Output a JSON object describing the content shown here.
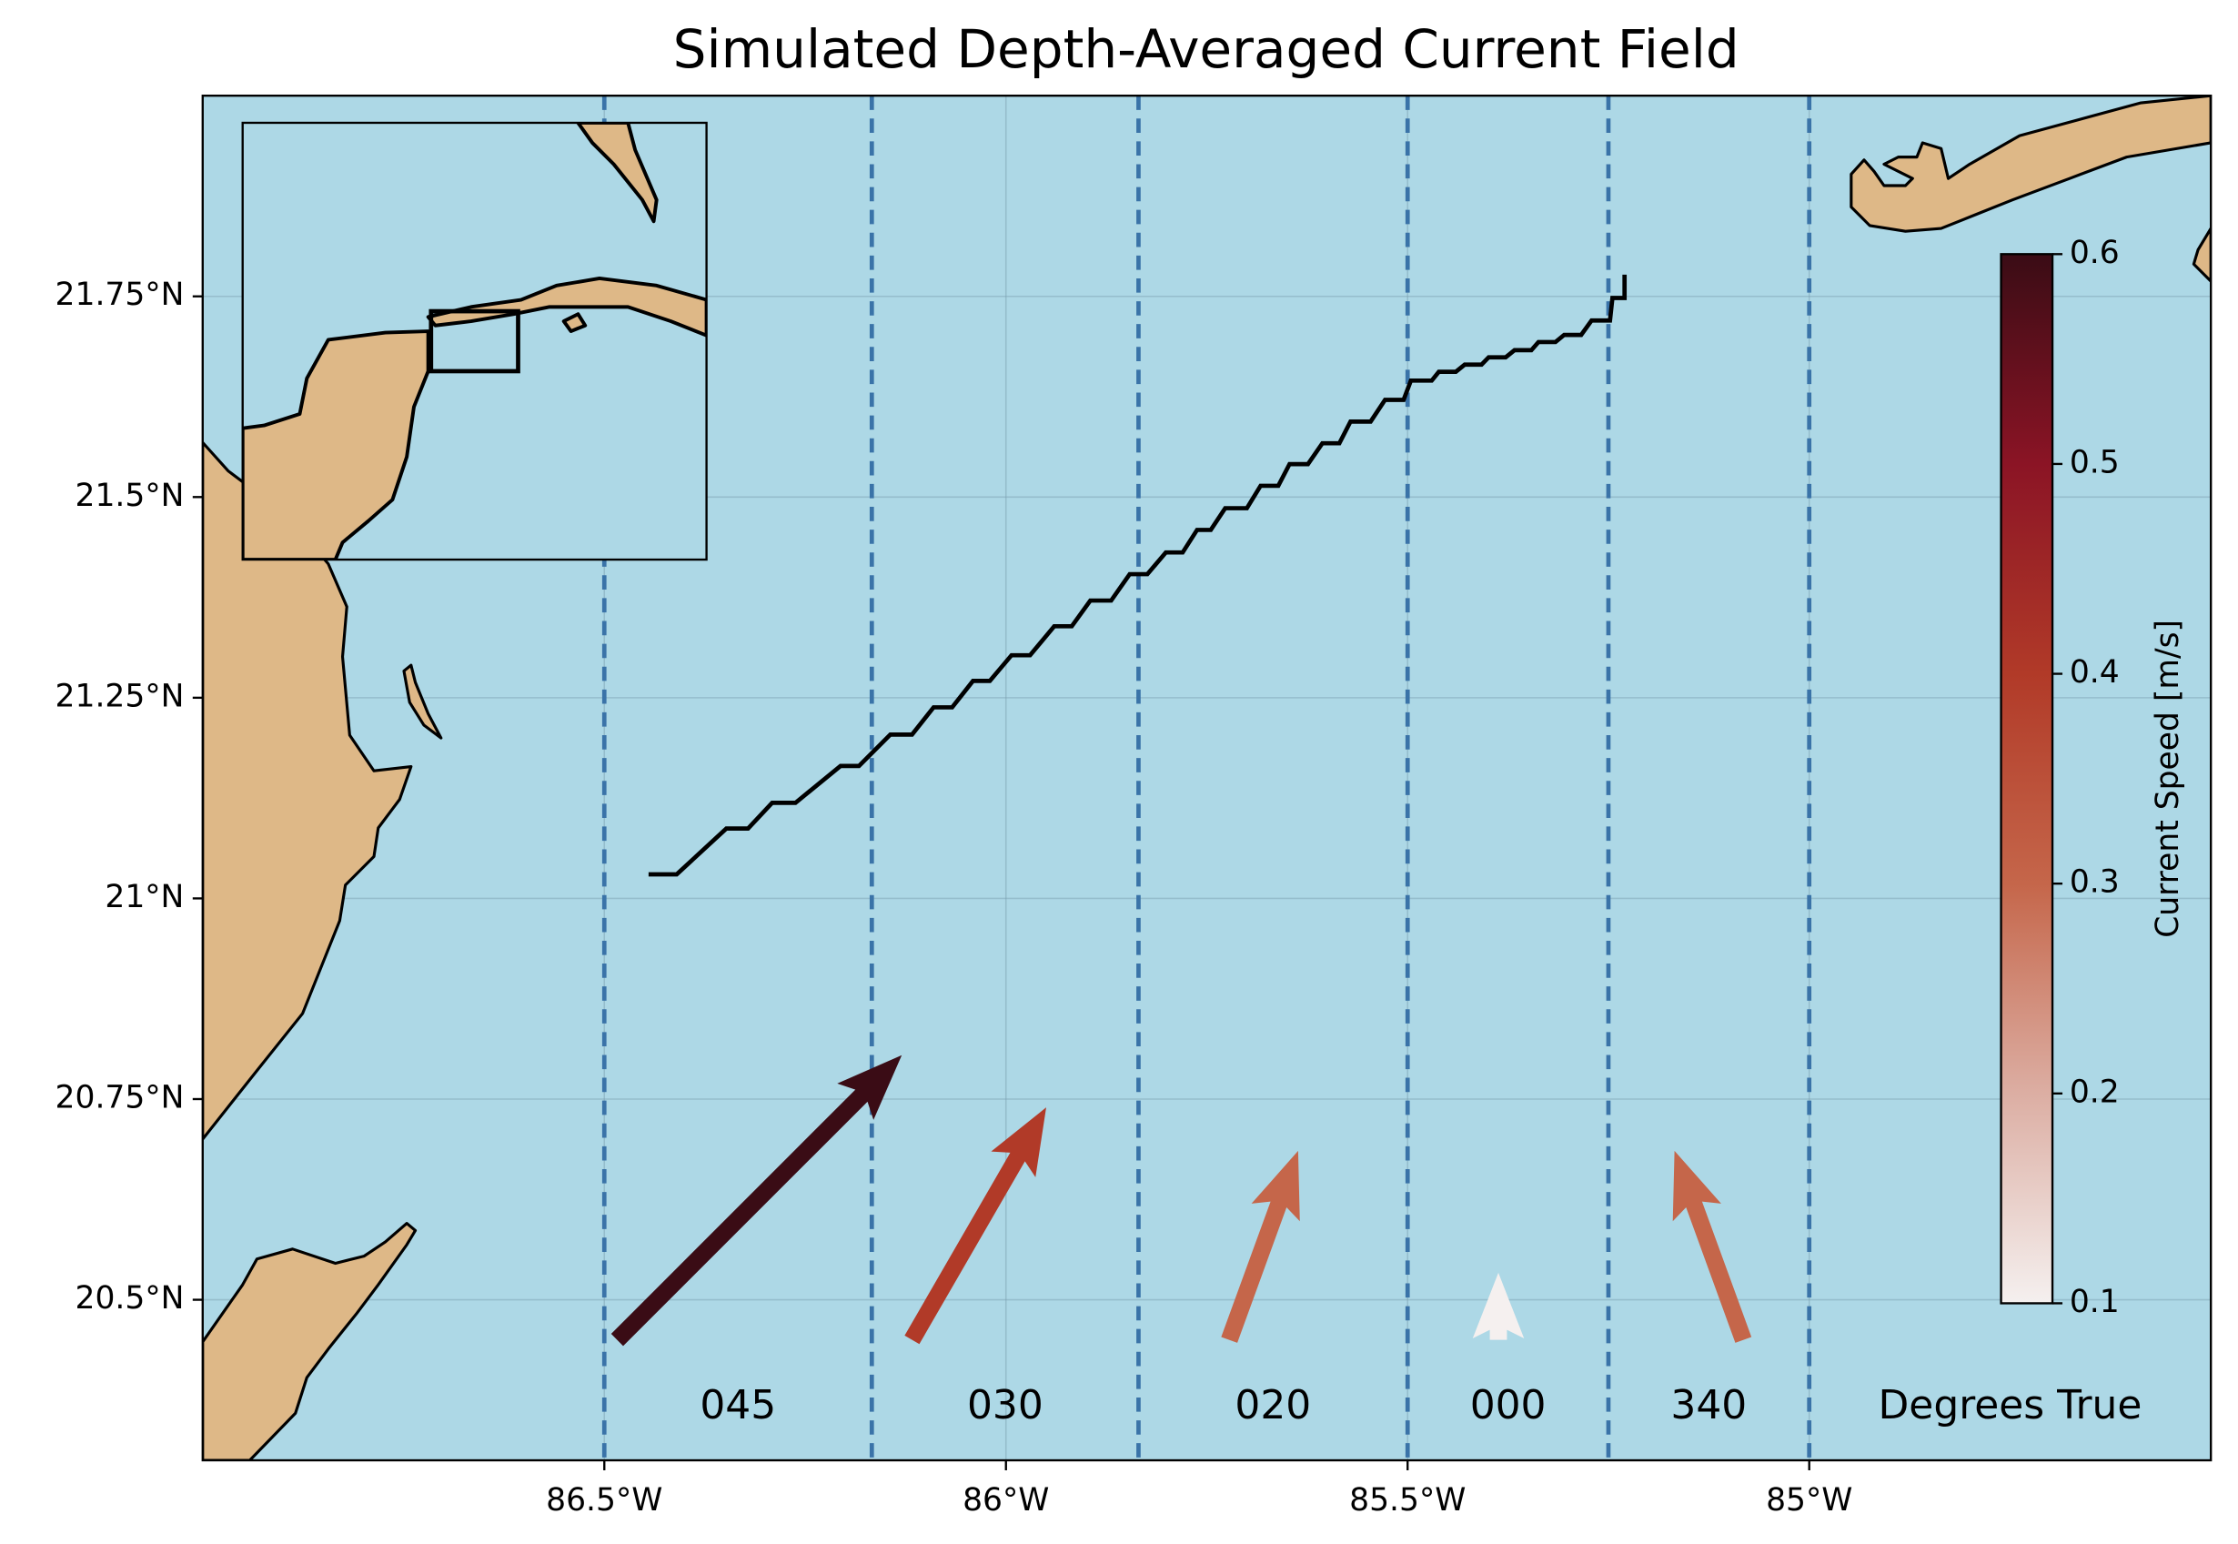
{
  "chart_data": {
    "type": "quiver",
    "title": "Simulated Depth-Averaged Current Field",
    "xlim": [
      -87.0,
      -84.5
    ],
    "ylim": [
      20.3,
      22.0
    ],
    "xticks": [
      {
        "value": -86.5,
        "label": "86.5°W"
      },
      {
        "value": -86.0,
        "label": "86°W"
      },
      {
        "value": -85.5,
        "label": "85.5°W"
      },
      {
        "value": -85.0,
        "label": "85°W"
      }
    ],
    "yticks": [
      {
        "value": 20.5,
        "label": "20.5°N"
      },
      {
        "value": 20.75,
        "label": "20.75°N"
      },
      {
        "value": 21.0,
        "label": "21°N"
      },
      {
        "value": 21.25,
        "label": "21.25°N"
      },
      {
        "value": 21.5,
        "label": "21.5°N"
      },
      {
        "value": 21.75,
        "label": "21.75°N"
      }
    ],
    "grid": true,
    "ocean_color": "#add8e6",
    "land_color": "#deb887",
    "track": {
      "color": "#000000",
      "lon": [
        -86.445,
        -86.41,
        -86.348,
        -86.321,
        -86.291,
        -86.262,
        -86.206,
        -86.183,
        -86.144,
        -86.117,
        -86.09,
        -86.067,
        -86.041,
        -86.02,
        -85.993,
        -85.97,
        -85.94,
        -85.918,
        -85.895,
        -85.869,
        -85.846,
        -85.824,
        -85.801,
        -85.78,
        -85.762,
        -85.745,
        -85.727,
        -85.7,
        -85.683,
        -85.661,
        -85.647,
        -85.624,
        -85.606,
        -85.585,
        -85.571,
        -85.546,
        -85.528,
        -85.505,
        -85.496,
        -85.47,
        -85.461,
        -85.44,
        -85.429,
        -85.408,
        -85.399,
        -85.378,
        -85.367,
        -85.346,
        -85.337,
        -85.316,
        -85.305,
        -85.284,
        -85.271,
        -85.248,
        -85.245,
        -85.23,
        -85.23
      ],
      "lat": [
        21.03,
        21.03,
        21.087,
        21.087,
        21.119,
        21.119,
        21.165,
        21.165,
        21.204,
        21.204,
        21.238,
        21.238,
        21.271,
        21.271,
        21.303,
        21.303,
        21.339,
        21.339,
        21.371,
        21.371,
        21.404,
        21.404,
        21.431,
        21.431,
        21.459,
        21.459,
        21.486,
        21.486,
        21.514,
        21.514,
        21.541,
        21.541,
        21.567,
        21.567,
        21.594,
        21.594,
        21.621,
        21.621,
        21.645,
        21.645,
        21.656,
        21.656,
        21.665,
        21.665,
        21.674,
        21.674,
        21.683,
        21.683,
        21.693,
        21.693,
        21.702,
        21.702,
        21.72,
        21.72,
        21.748,
        21.748,
        21.777
      ]
    },
    "segment_boundaries": {
      "color": "#3a73a8",
      "lon": [
        -86.5,
        -86.167,
        -85.835,
        -85.5,
        -85.25,
        -85.0
      ]
    },
    "arrows": {
      "lon": [
        -86.484,
        -86.117,
        -85.722,
        -85.387,
        -85.082
      ],
      "lat": [
        20.45,
        20.45,
        20.45,
        20.45,
        20.45
      ],
      "directions": [
        45,
        30,
        20,
        0,
        340
      ],
      "direction_labels": [
        "045",
        "030",
        "020",
        "000",
        "340"
      ],
      "speed": [
        0.6,
        0.4,
        0.3,
        0.1,
        0.3
      ]
    },
    "annotation": "Degrees True",
    "colorbar": {
      "label": "Current Speed [m/s]",
      "lim": [
        0.1,
        0.6
      ],
      "ticks": [
        0.1,
        0.2,
        0.3,
        0.4,
        0.5,
        0.6
      ],
      "colormap": [
        "#f5f0ef",
        "#dcaea3",
        "#c5664a",
        "#b13a28",
        "#8b1425",
        "#3a0c15"
      ]
    }
  }
}
